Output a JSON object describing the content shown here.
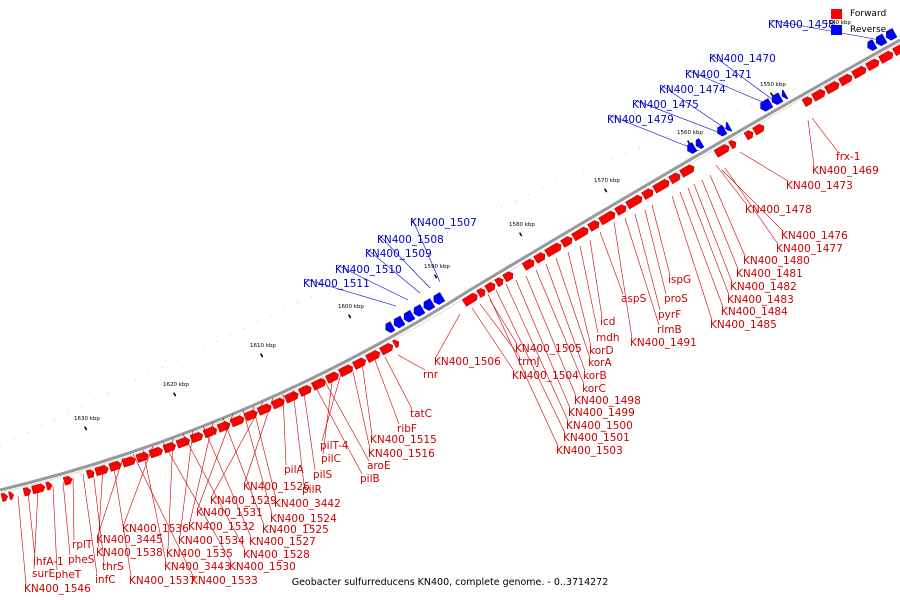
{
  "colors": {
    "forward": "#ff0000",
    "reverse": "#0000ff",
    "backbone": "#999999",
    "label_forward": "#cc0000",
    "label_reverse": "#0000cc"
  },
  "legend": {
    "forward_label": "Forward",
    "reverse_label": "Reverse"
  },
  "caption": "Geobacter sulfurreducens KN400, complete genome. - 0..3714272",
  "ticks": [
    "1540 kbp",
    "1550 kbp",
    "1560 kbp",
    "1570 kbp",
    "1580 kbp",
    "1590 kbp",
    "1600 kbp",
    "1610 kbp",
    "1620 kbp",
    "1630 kbp"
  ],
  "forward_labels": [
    "frx-1",
    "KN400_1469",
    "KN400_1473",
    "KN400_1478",
    "KN400_1476",
    "KN400_1477",
    "KN400_1480",
    "KN400_1481",
    "KN400_1482",
    "KN400_1483",
    "KN400_1484",
    "KN400_1485",
    "ispG",
    "proS",
    "pyrF",
    "rlmB",
    "KN400_1491",
    "aspS",
    "icd",
    "mdh",
    "korD",
    "korA",
    "korB",
    "korC",
    "KN400_1498",
    "KN400_1499",
    "KN400_1500",
    "KN400_1501",
    "KN400_1503",
    "KN400_1505",
    "trmJ",
    "KN400_1504",
    "KN400_1506",
    "rnr",
    "tatC",
    "ribF",
    "KN400_1515",
    "KN400_1516",
    "pilT-4",
    "pilC",
    "aroE",
    "pilB",
    "pilS",
    "pilR",
    "pilA",
    "KN400_1526",
    "KN400_1529",
    "KN400_3442",
    "KN400_1524",
    "KN400_1531",
    "KN400_1525",
    "KN400_1532",
    "KN400_1527",
    "KN400_1534",
    "KN400_1528",
    "KN400_1535",
    "KN400_1530",
    "KN400_1536",
    "KN400_3443",
    "KN400_1533",
    "KN400_3445",
    "KN400_1537",
    "KN400_1538",
    "thrS",
    "infC",
    "rplT",
    "pheS",
    "pheT",
    "surE",
    "ihfA-1",
    "KN400_1546"
  ],
  "reverse_labels": [
    "KN400_1458",
    "KN400_1470",
    "KN400_1471",
    "KN400_1474",
    "KN400_1475",
    "KN400_1479",
    "KN400_1507",
    "KN400_1508",
    "KN400_1509",
    "KN400_1510",
    "KN400_1511"
  ]
}
